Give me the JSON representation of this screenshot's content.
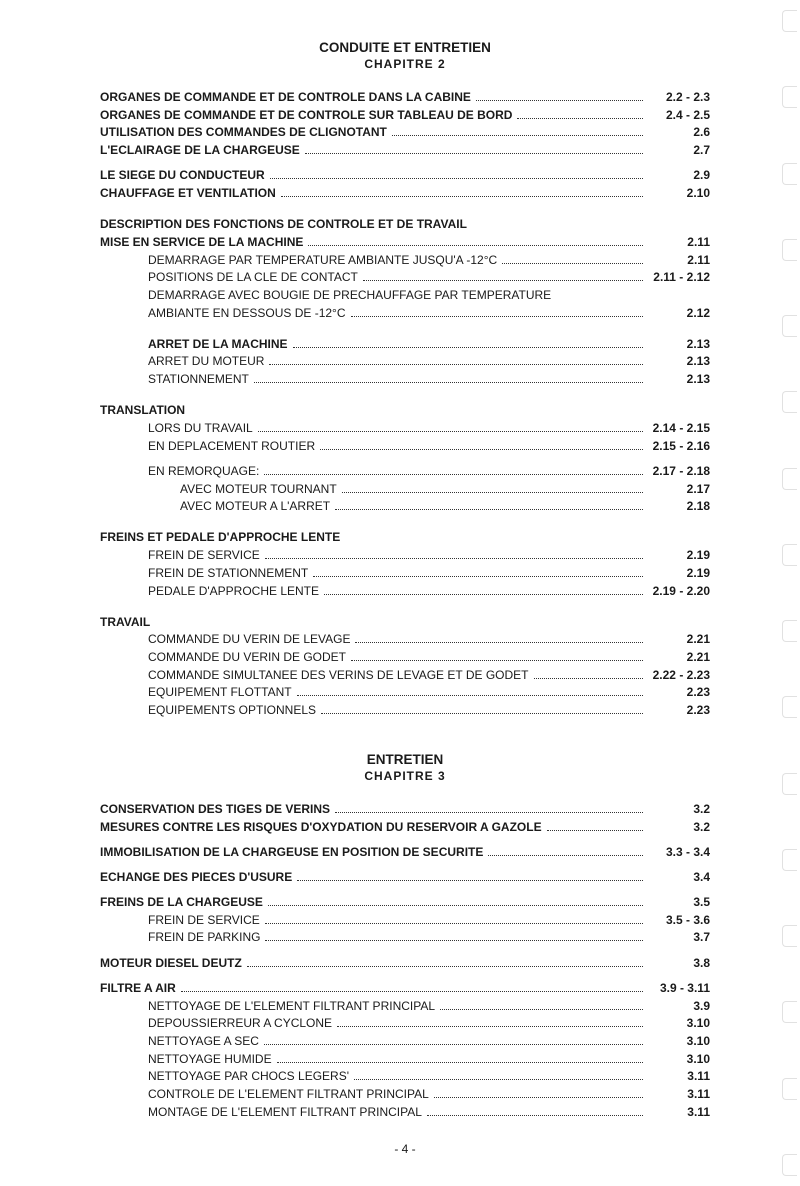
{
  "chapter2": {
    "title": "CONDUITE ET ENTRETIEN",
    "subtitle": "CHAPITRE  2",
    "entries": [
      {
        "label": "ORGANES DE COMMANDE ET DE CONTROLE DANS LA CABINE",
        "page": "2.2 - 2.3",
        "bold": true,
        "indent": 0
      },
      {
        "label": "ORGANES DE COMMANDE ET DE CONTROLE SUR TABLEAU DE BORD",
        "page": "2.4 - 2.5",
        "bold": true,
        "indent": 0
      },
      {
        "label": "UTILISATION DES COMMANDES DE CLIGNOTANT",
        "page": "2.6",
        "bold": true,
        "indent": 0
      },
      {
        "label": "L'ECLAIRAGE DE LA CHARGEUSE",
        "page": "2.7",
        "bold": true,
        "indent": 0
      },
      {
        "gap": "sm"
      },
      {
        "label": "LE SIEGE DU CONDUCTEUR",
        "page": "2.9",
        "bold": true,
        "indent": 0
      },
      {
        "label": "CHAUFFAGE ET VENTILATION",
        "page": "2.10",
        "bold": true,
        "indent": 0
      },
      {
        "gap": "md"
      },
      {
        "label": "DESCRIPTION DES FONCTIONS DE CONTROLE ET DE TRAVAIL",
        "nodots": true,
        "bold": true,
        "indent": 0
      },
      {
        "label": "MISE EN SERVICE DE LA MACHINE",
        "page": "2.11",
        "bold": true,
        "indent": 0
      },
      {
        "label": "DEMARRAGE PAR TEMPERATURE AMBIANTE JUSQU'A -12°C",
        "page": "2.11",
        "indent": 1
      },
      {
        "label": "POSITIONS DE LA CLE DE CONTACT",
        "page": "2.11 - 2.12",
        "indent": 1
      },
      {
        "label": "DEMARRAGE AVEC BOUGIE DE PRECHAUFFAGE PAR TEMPERATURE",
        "nodots": true,
        "indent": 1
      },
      {
        "label": "AMBIANTE EN DESSOUS DE -12°C",
        "page": "2.12",
        "indent": 1
      },
      {
        "gap": "md"
      },
      {
        "label": "ARRET DE LA MACHINE",
        "page": "2.13",
        "bold": true,
        "indent": 1
      },
      {
        "label": "ARRET DU MOTEUR",
        "page": "2.13",
        "indent": 1
      },
      {
        "label": "STATIONNEMENT",
        "page": "2.13",
        "indent": 1
      },
      {
        "gap": "md"
      },
      {
        "label": "TRANSLATION",
        "nodots": true,
        "bold": true,
        "indent": 0
      },
      {
        "label": "LORS DU TRAVAIL",
        "page": "2.14 - 2.15",
        "indent": 1
      },
      {
        "label": "EN DEPLACEMENT ROUTIER",
        "page": "2.15 - 2.16",
        "indent": 1
      },
      {
        "gap": "sm"
      },
      {
        "label": "EN REMORQUAGE:",
        "page": "2.17 - 2.18",
        "indent": 1
      },
      {
        "label": "AVEC MOTEUR TOURNANT",
        "page": "2.17",
        "indent": 2
      },
      {
        "label": "AVEC MOTEUR A L'ARRET",
        "page": "2.18",
        "indent": 2
      },
      {
        "gap": "md"
      },
      {
        "label": "FREINS ET PEDALE D'APPROCHE LENTE",
        "nodots": true,
        "bold": true,
        "indent": 0
      },
      {
        "label": "FREIN DE SERVICE",
        "page": "2.19",
        "indent": 1
      },
      {
        "label": "FREIN DE STATIONNEMENT",
        "page": "2.19",
        "indent": 1
      },
      {
        "label": "PEDALE D'APPROCHE LENTE",
        "page": "2.19 - 2.20",
        "indent": 1
      },
      {
        "gap": "md"
      },
      {
        "label": "TRAVAIL",
        "nodots": true,
        "bold": true,
        "indent": 0
      },
      {
        "label": "COMMANDE DU VERIN DE LEVAGE",
        "page": "2.21",
        "indent": 1
      },
      {
        "label": "COMMANDE DU VERIN DE GODET",
        "page": "2.21",
        "indent": 1
      },
      {
        "label": "COMMANDE SIMULTANEE DES VERINS DE LEVAGE ET DE GODET",
        "page": "2.22 - 2.23",
        "indent": 1
      },
      {
        "label": "EQUIPEMENT FLOTTANT",
        "page": "2.23",
        "indent": 1
      },
      {
        "label": "EQUIPEMENTS OPTIONNELS",
        "page": "2.23",
        "indent": 1
      }
    ]
  },
  "chapter3": {
    "title": "ENTRETIEN",
    "subtitle": "CHAPITRE  3",
    "entries": [
      {
        "label": "CONSERVATION DES TIGES DE VERINS",
        "page": "3.2",
        "bold": true,
        "indent": 0
      },
      {
        "label": "MESURES CONTRE LES RISQUES D'OXYDATION DU RESERVOIR A GAZOLE",
        "page": "3.2",
        "bold": true,
        "indent": 0
      },
      {
        "gap": "sm"
      },
      {
        "label": "IMMOBILISATION DE LA CHARGEUSE EN POSITION DE SECURITE",
        "page": "3.3 - 3.4",
        "bold": true,
        "indent": 0
      },
      {
        "gap": "sm"
      },
      {
        "label": "ECHANGE DES PIECES D'USURE",
        "page": "3.4",
        "bold": true,
        "indent": 0
      },
      {
        "gap": "sm"
      },
      {
        "label": "FREINS DE LA CHARGEUSE",
        "page": "3.5",
        "bold": true,
        "indent": 0
      },
      {
        "label": "FREIN DE SERVICE",
        "page": "3.5 - 3.6",
        "indent": 1
      },
      {
        "label": "FREIN DE PARKING",
        "page": "3.7",
        "indent": 1
      },
      {
        "gap": "sm"
      },
      {
        "label": "MOTEUR DIESEL DEUTZ",
        "page": "3.8",
        "bold": true,
        "indent": 0
      },
      {
        "gap": "sm"
      },
      {
        "label": "FILTRE A AIR",
        "page": "3.9 - 3.11",
        "bold": true,
        "indent": 0
      },
      {
        "label": "NETTOYAGE DE L'ELEMENT FILTRANT PRINCIPAL",
        "page": "3.9",
        "indent": 1
      },
      {
        "label": "DEPOUSSIERREUR A CYCLONE",
        "page": "3.10",
        "indent": 1
      },
      {
        "label": "NETTOYAGE A SEC",
        "page": "3.10",
        "indent": 1
      },
      {
        "label": "NETTOYAGE HUMIDE",
        "page": "3.10",
        "indent": 1
      },
      {
        "label": "NETTOYAGE PAR CHOCS LEGERS'",
        "page": "3.11",
        "indent": 1
      },
      {
        "label": "CONTROLE DE L'ELEMENT FILTRANT PRINCIPAL",
        "page": "3.11",
        "indent": 1
      },
      {
        "label": "MONTAGE DE L'ELEMENT FILTRANT PRINCIPAL",
        "page": "3.11",
        "indent": 1
      }
    ]
  },
  "page_number": "- 4 -"
}
